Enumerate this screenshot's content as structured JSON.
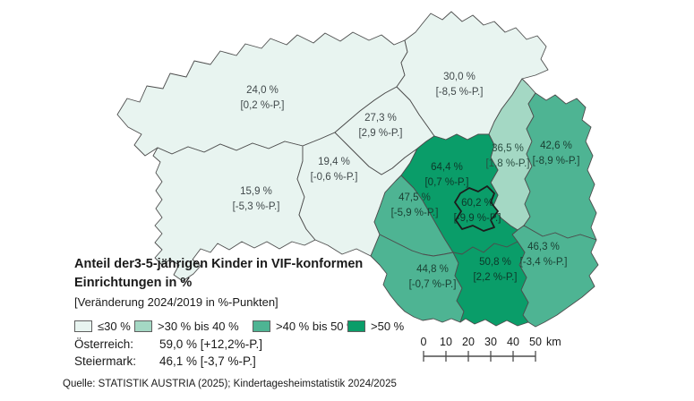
{
  "title": {
    "line1": "Anteil der3-5-jährigen Kinder in VIF-konformen",
    "line2": "Einrichtungen in %",
    "subtitle": "[Veränderung 2024/2019 in %-Punkten]"
  },
  "legend": {
    "items": [
      {
        "label": "≤30 %",
        "color": "#e8f4f0"
      },
      {
        "label": ">30 % bis 40 %",
        "color": "#a4d8c4"
      },
      {
        "label": ">40 % bis 50 %",
        "color": "#4eb493"
      },
      {
        "label": ">50 %",
        "color": "#0a9d69"
      }
    ]
  },
  "summary": {
    "austria_label": "Österreich:",
    "austria_value": "59,0 % [+12,2%-P.]",
    "styria_label": "Steiermark:",
    "styria_value": "46,1 % [-3,7 %-P.]"
  },
  "scalebar": {
    "ticks": [
      "0",
      "10",
      "20",
      "30",
      "40",
      "50"
    ],
    "unit": "km"
  },
  "source": "Quelle: STATISTIK AUSTRIA (2025); Kindertagesheimstatistik 2024/2025",
  "map": {
    "category_colors": {
      "le30": "#e8f4f0",
      "gt30to40": "#a4d8c4",
      "gt40to50": "#4eb493",
      "gt50": "#0a9d69"
    },
    "regions": [
      {
        "id": "liezen",
        "value": "24,0 %",
        "change": "[0,2 %-P.]",
        "category": "le30"
      },
      {
        "id": "murau",
        "value": "15,9 %",
        "change": "[-5,3 %-P.]",
        "category": "le30"
      },
      {
        "id": "murtal",
        "value": "19,4 %",
        "change": "[-0,6 %-P.]",
        "category": "le30"
      },
      {
        "id": "leoben",
        "value": "27,3 %",
        "change": "[2,9 %-P.]",
        "category": "le30"
      },
      {
        "id": "bruck-muerzzuschlag",
        "value": "30,0 %",
        "change": "[-8,5 %-P.]",
        "category": "le30"
      },
      {
        "id": "weiz",
        "value": "36,5 %",
        "change": "[1,8 %-P.]",
        "category": "gt30to40"
      },
      {
        "id": "hartberg-fuerstenfeld",
        "value": "42,6 %",
        "change": "[-8,9 %-P.]",
        "category": "gt40to50"
      },
      {
        "id": "voitsberg",
        "value": "47,5 %",
        "change": "[-5,9 %-P.]",
        "category": "gt40to50"
      },
      {
        "id": "deutschlandsberg",
        "value": "44,8 %",
        "change": "[-0,7 %-P.]",
        "category": "gt40to50"
      },
      {
        "id": "suedoststeiermark",
        "value": "46,3 %",
        "change": "[-3,4 %-P.]",
        "category": "gt40to50"
      },
      {
        "id": "graz-umgebung",
        "value": "64,4 %",
        "change": "[0,7 %-P.]",
        "category": "gt50"
      },
      {
        "id": "leibnitz",
        "value": "50,8 %",
        "change": "[2,2 %-P.]",
        "category": "gt50"
      },
      {
        "id": "graz",
        "value": "60,2 %",
        "change": "[-9,9 %-P.]",
        "category": "gt50"
      }
    ]
  }
}
